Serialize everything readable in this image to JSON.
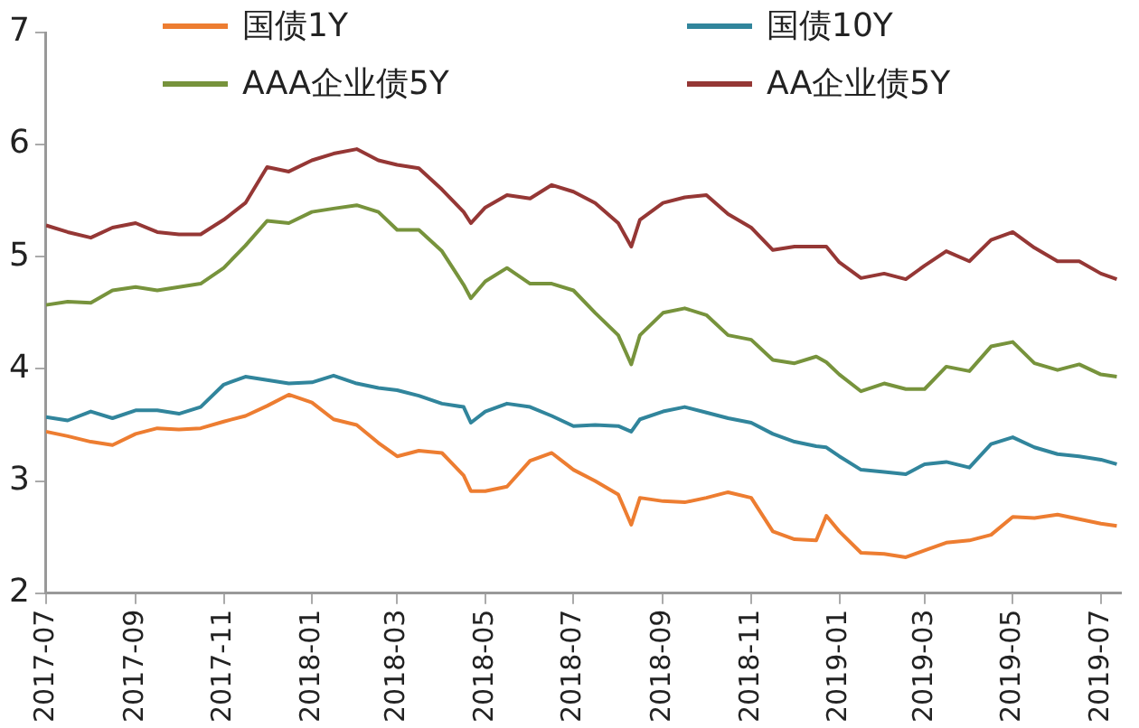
{
  "chart_data": {
    "type": "line",
    "legend": "top",
    "marker": "none",
    "line_style": "solid",
    "grid": false,
    "x": [
      "2017-07-01",
      "2017-07-16",
      "2017-08-01",
      "2017-08-16",
      "2017-09-01",
      "2017-09-16",
      "2017-10-01",
      "2017-10-16",
      "2017-11-01",
      "2017-11-16",
      "2017-12-01",
      "2017-12-16",
      "2018-01-01",
      "2018-01-16",
      "2018-02-01",
      "2018-02-16",
      "2018-03-01",
      "2018-03-16",
      "2018-04-01",
      "2018-04-16",
      "2018-04-21",
      "2018-05-01",
      "2018-05-16",
      "2018-06-01",
      "2018-06-16",
      "2018-07-01",
      "2018-07-16",
      "2018-08-01",
      "2018-08-10",
      "2018-08-16",
      "2018-09-01",
      "2018-09-16",
      "2018-10-01",
      "2018-10-16",
      "2018-11-01",
      "2018-11-16",
      "2018-12-01",
      "2018-12-16",
      "2018-12-23",
      "2019-01-01",
      "2019-01-16",
      "2019-02-01",
      "2019-02-16",
      "2019-03-01",
      "2019-03-16",
      "2019-04-01",
      "2019-04-16",
      "2019-05-01",
      "2019-05-16",
      "2019-06-01",
      "2019-06-16",
      "2019-07-01",
      "2019-07-12"
    ],
    "xlim": [
      "2017-07-01",
      "2019-07-15"
    ],
    "xticks": [
      "2017-07",
      "2017-09",
      "2017-11",
      "2018-01",
      "2018-03",
      "2018-05",
      "2018-07",
      "2018-09",
      "2018-11",
      "2019-01",
      "2019-03",
      "2019-05",
      "2019-07"
    ],
    "ylim": [
      2,
      7
    ],
    "yticks": [
      2,
      3,
      4,
      5,
      6,
      7
    ],
    "series": [
      {
        "name": "国债1Y",
        "color": "#ed7d31",
        "values": [
          3.44,
          3.4,
          3.35,
          3.32,
          3.42,
          3.47,
          3.46,
          3.47,
          3.53,
          3.58,
          3.67,
          3.77,
          3.7,
          3.55,
          3.5,
          3.34,
          3.22,
          3.27,
          3.25,
          3.05,
          2.91,
          2.91,
          2.95,
          3.18,
          3.25,
          3.1,
          3.0,
          2.88,
          2.61,
          2.85,
          2.82,
          2.81,
          2.85,
          2.9,
          2.85,
          2.55,
          2.48,
          2.47,
          2.69,
          2.55,
          2.36,
          2.35,
          2.32,
          2.38,
          2.45,
          2.47,
          2.52,
          2.68,
          2.67,
          2.7,
          2.66,
          2.62,
          2.6
        ]
      },
      {
        "name": "国债10Y",
        "color": "#31859c",
        "values": [
          3.57,
          3.54,
          3.62,
          3.56,
          3.63,
          3.63,
          3.6,
          3.66,
          3.86,
          3.93,
          3.9,
          3.87,
          3.88,
          3.94,
          3.87,
          3.83,
          3.81,
          3.76,
          3.69,
          3.66,
          3.52,
          3.62,
          3.69,
          3.66,
          3.58,
          3.49,
          3.5,
          3.49,
          3.44,
          3.55,
          3.62,
          3.66,
          3.61,
          3.56,
          3.52,
          3.42,
          3.35,
          3.31,
          3.3,
          3.22,
          3.1,
          3.08,
          3.06,
          3.15,
          3.17,
          3.12,
          3.33,
          3.39,
          3.3,
          3.24,
          3.22,
          3.19,
          3.15
        ]
      },
      {
        "name": "AAA企业债5Y",
        "color": "#77933c",
        "values": [
          4.57,
          4.6,
          4.59,
          4.7,
          4.73,
          4.7,
          4.73,
          4.76,
          4.9,
          5.1,
          5.32,
          5.3,
          5.4,
          5.43,
          5.46,
          5.4,
          5.24,
          5.24,
          5.05,
          4.75,
          4.63,
          4.78,
          4.9,
          4.76,
          4.76,
          4.7,
          4.5,
          4.3,
          4.04,
          4.3,
          4.5,
          4.54,
          4.48,
          4.3,
          4.26,
          4.08,
          4.05,
          4.11,
          4.06,
          3.95,
          3.8,
          3.87,
          3.82,
          3.82,
          4.02,
          3.98,
          4.2,
          4.24,
          4.05,
          3.99,
          4.04,
          3.95,
          3.93
        ]
      },
      {
        "name": "AA企业债5Y",
        "color": "#953735",
        "values": [
          5.28,
          5.22,
          5.17,
          5.26,
          5.3,
          5.22,
          5.2,
          5.2,
          5.33,
          5.48,
          5.8,
          5.76,
          5.86,
          5.92,
          5.96,
          5.86,
          5.82,
          5.79,
          5.6,
          5.4,
          5.3,
          5.44,
          5.55,
          5.52,
          5.64,
          5.58,
          5.48,
          5.3,
          5.09,
          5.33,
          5.48,
          5.53,
          5.55,
          5.38,
          5.26,
          5.06,
          5.09,
          5.09,
          5.09,
          4.95,
          4.81,
          4.85,
          4.8,
          4.92,
          5.05,
          4.96,
          5.15,
          5.22,
          5.08,
          4.96,
          4.96,
          4.85,
          4.8
        ]
      }
    ]
  }
}
